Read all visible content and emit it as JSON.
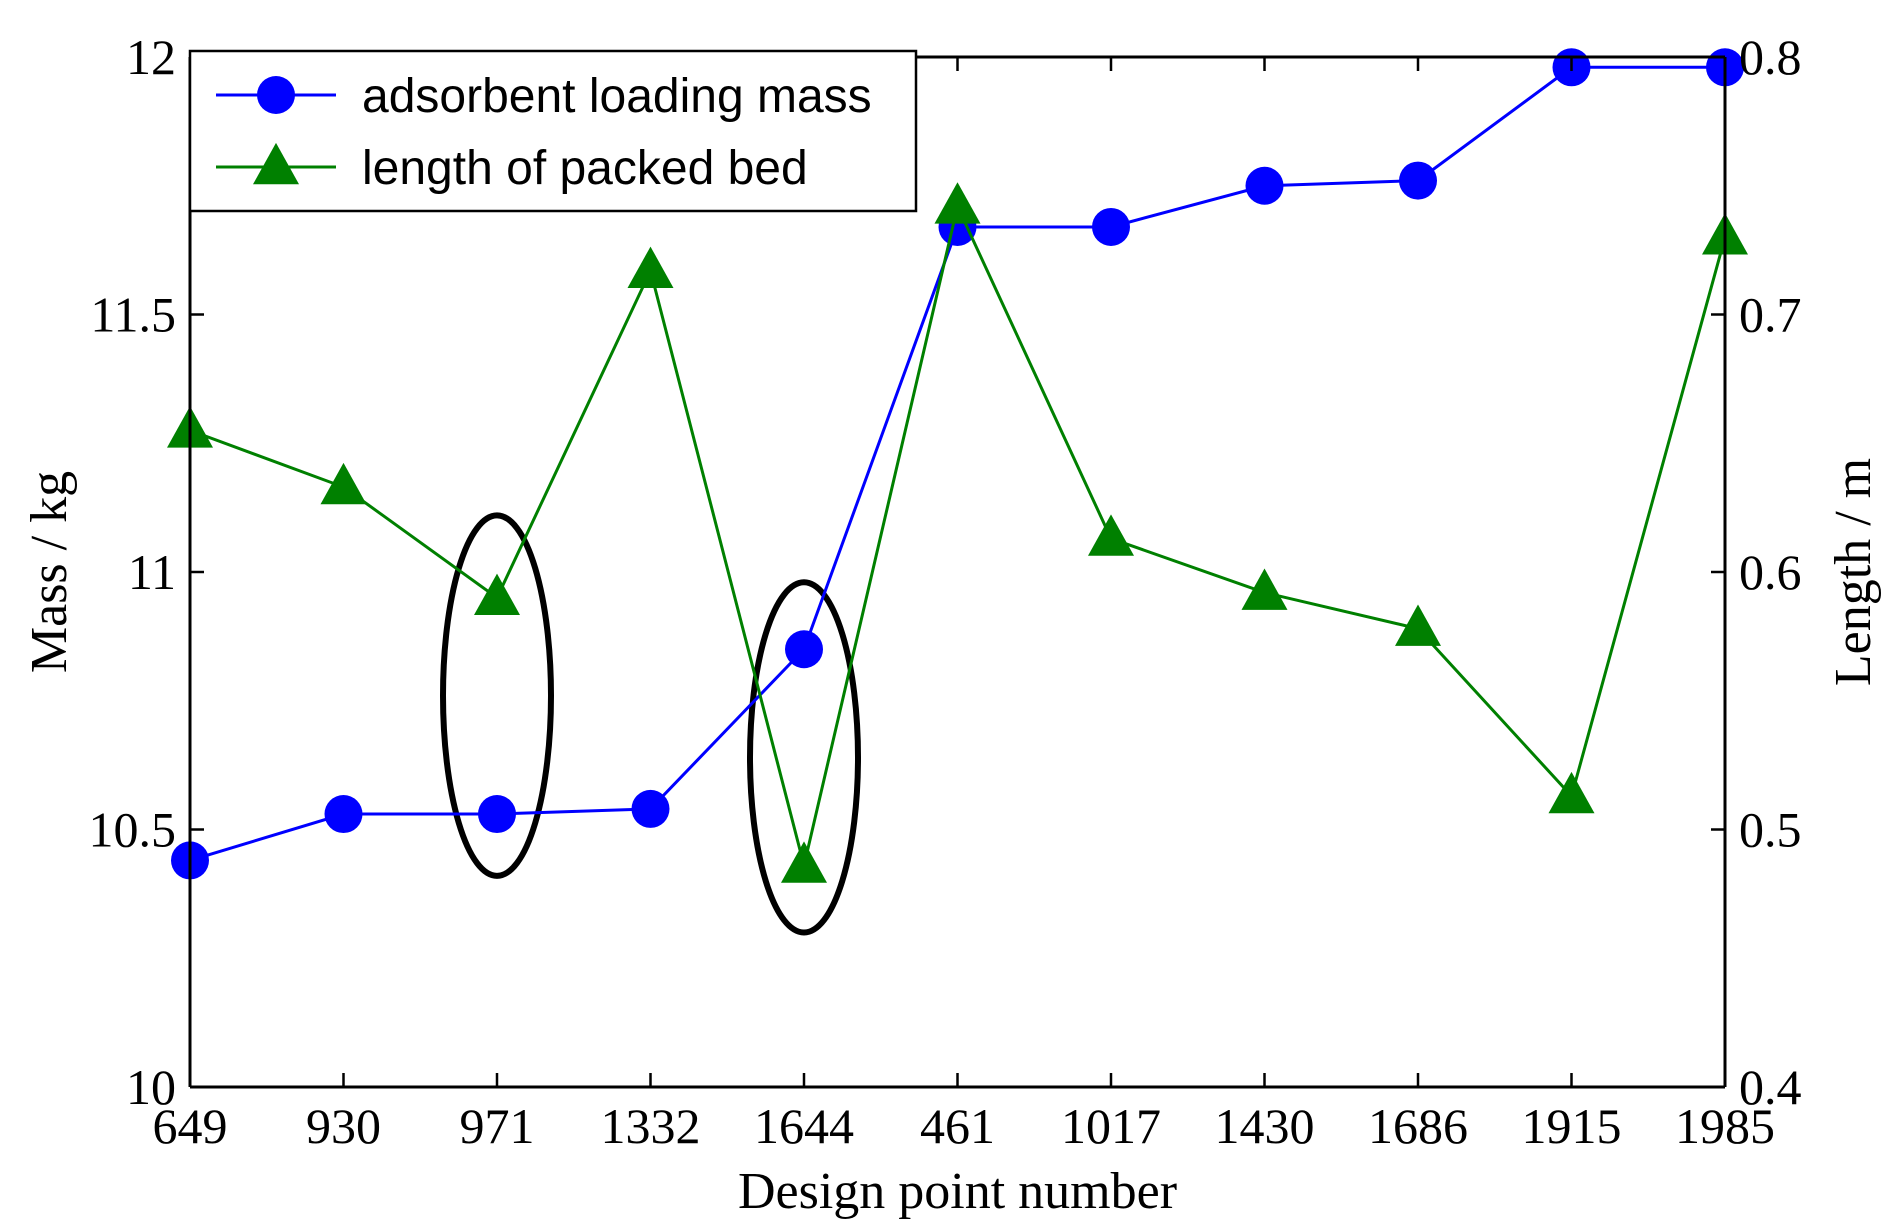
{
  "chart_data": {
    "type": "line",
    "categories": [
      "649",
      "930",
      "971",
      "1332",
      "1644",
      "461",
      "1017",
      "1430",
      "1686",
      "1915",
      "1985"
    ],
    "xlabel": "Design point number",
    "ylabel_left": "Mass / kg",
    "ylabel_right": "Length / m",
    "y_left": {
      "lim": [
        10,
        12
      ],
      "ticks": [
        10,
        10.5,
        11,
        11.5,
        12
      ],
      "tick_labels": [
        "10",
        "10.5",
        "11",
        "11.5",
        "12"
      ]
    },
    "y_right": {
      "lim": [
        0.4,
        0.8
      ],
      "ticks": [
        0.4,
        0.5,
        0.6,
        0.7,
        0.8
      ],
      "tick_labels": [
        "0.4",
        "0.5",
        "0.6",
        "0.7",
        "0.8"
      ]
    },
    "series": [
      {
        "name": "adsorbent loading mass",
        "axis": "left",
        "marker": "circle",
        "color": "#0000ff",
        "values": [
          10.44,
          10.53,
          10.53,
          10.54,
          10.85,
          11.67,
          11.67,
          11.75,
          11.76,
          11.98,
          11.98
        ]
      },
      {
        "name": "length of packed bed",
        "axis": "right",
        "marker": "triangle",
        "color": "#008000",
        "values": [
          0.655,
          0.633,
          0.59,
          0.717,
          0.486,
          0.742,
          0.613,
          0.592,
          0.578,
          0.513,
          0.73
        ]
      }
    ],
    "annotations": [
      {
        "shape": "ellipse",
        "category_index": 2,
        "y_center_left": 10.76,
        "y_span_left": [
          10.41,
          11.11
        ],
        "color": "#000000"
      },
      {
        "shape": "ellipse",
        "category_index": 4,
        "y_center_left": 10.64,
        "y_span_left": [
          10.3,
          10.98
        ],
        "color": "#000000"
      }
    ],
    "legend_position": "top-left",
    "grid": false
  }
}
